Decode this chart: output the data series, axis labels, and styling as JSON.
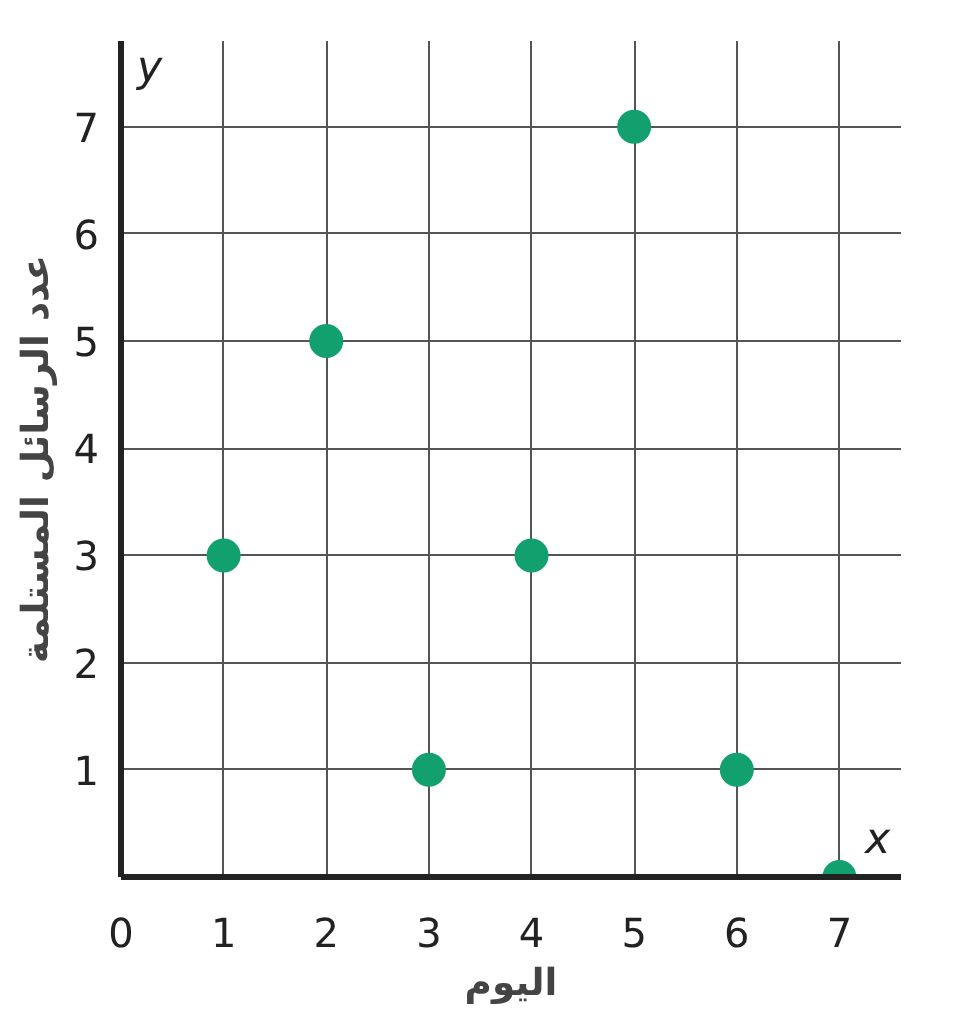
{
  "chart_data": {
    "type": "scatter",
    "xlabel": "اليوم",
    "ylabel": "عدد الرسائل المستلمة",
    "annotations": [
      "x",
      "y"
    ],
    "x": [
      1,
      2,
      3,
      4,
      5,
      6,
      7
    ],
    "values": [
      3,
      5,
      1,
      3,
      7,
      1,
      0
    ],
    "color": "#13a06f",
    "xlim": [
      0,
      7.6
    ],
    "ylim": [
      0,
      7.8
    ],
    "xticks": [
      0,
      1,
      2,
      3,
      4,
      5,
      6,
      7
    ],
    "yticks": [
      1,
      2,
      3,
      4,
      5,
      6,
      7
    ],
    "grid": true,
    "marker": "circle"
  }
}
